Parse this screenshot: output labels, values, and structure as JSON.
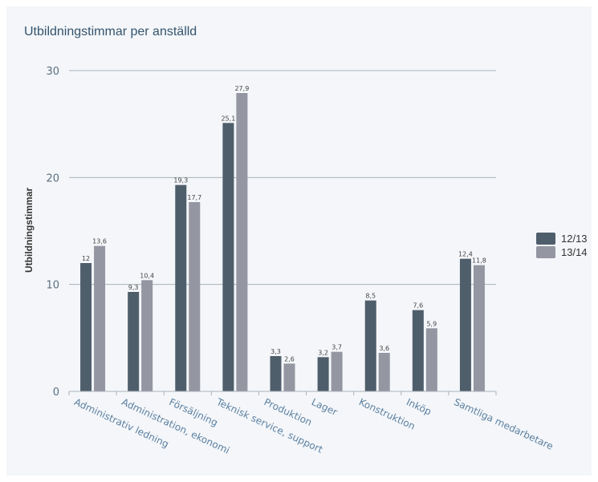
{
  "chart_data": {
    "type": "bar",
    "title": "Utbildningstimmar per anställd",
    "ylabel": "Utbildningstimmar",
    "xlabel": "",
    "ylim": [
      0,
      30
    ],
    "yticks": [
      0,
      10,
      20,
      30
    ],
    "grid": true,
    "legend_position": "right",
    "categories": [
      "Administrativ ledning",
      "Administration, ekonomi",
      "Försäljning",
      "Teknisk service, support",
      "Produktion",
      "Lager",
      "Konstruktion",
      "Inköp",
      "Samtliga medarbetare"
    ],
    "series": [
      {
        "name": "12/13",
        "color": "#4f5e6b",
        "values": [
          12,
          9.3,
          19.3,
          25.1,
          3.3,
          3.2,
          8.5,
          7.6,
          12.4
        ],
        "labels": [
          "12",
          "9,3",
          "19,3",
          "25,1",
          "3,3",
          "3,2",
          "8,5",
          "7,6",
          "12,4"
        ]
      },
      {
        "name": "13/14",
        "color": "#9496a1",
        "values": [
          13.6,
          10.4,
          17.7,
          27.9,
          2.6,
          3.7,
          3.6,
          5.9,
          11.8
        ],
        "labels": [
          "13,6",
          "10,4",
          "17,7",
          "27,9",
          "2,6",
          "3,7",
          "3,6",
          "5,9",
          "11,8"
        ]
      }
    ]
  }
}
